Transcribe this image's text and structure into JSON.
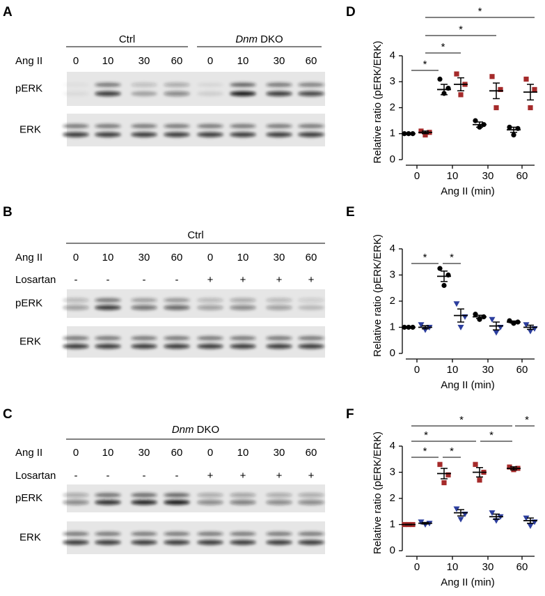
{
  "blots": [
    {
      "panel": "A",
      "groups": [
        [
          "Ctrl"
        ],
        [
          "Dnm",
          "DKO"
        ]
      ],
      "rows": [
        {
          "label": "Ang II",
          "cells": [
            "0",
            "10",
            "30",
            "60",
            "0",
            "10",
            "30",
            "60"
          ]
        }
      ],
      "bands": [
        "pERK",
        "ERK"
      ]
    },
    {
      "panel": "B",
      "groups": [
        [
          "Ctrl"
        ]
      ],
      "rows": [
        {
          "label": "Ang II",
          "cells": [
            "0",
            "10",
            "30",
            "60",
            "0",
            "10",
            "30",
            "60"
          ]
        },
        {
          "label": "Losartan",
          "cells": [
            "-",
            "-",
            "-",
            "-",
            "+",
            "+",
            "+",
            "+"
          ]
        }
      ],
      "bands": [
        "pERK",
        "ERK"
      ]
    },
    {
      "panel": "C",
      "groups": [
        [
          "Dnm",
          "DKO"
        ]
      ],
      "rows": [
        {
          "label": "Ang II",
          "cells": [
            "0",
            "10",
            "30",
            "60",
            "0",
            "10",
            "30",
            "60"
          ]
        },
        {
          "label": "Losartan",
          "cells": [
            "-",
            "-",
            "-",
            "-",
            "+",
            "+",
            "+",
            "+"
          ]
        }
      ],
      "bands": [
        "pERK",
        "ERK"
      ]
    }
  ],
  "chart_data": [
    {
      "type": "dotplot",
      "panel": "D",
      "ylabel": "Relative ratio (pERK/ERK)",
      "xlabel": "Ang II (min)",
      "categories": [
        "0",
        "10",
        "30",
        "60"
      ],
      "ylim": [
        0,
        4
      ],
      "yticks": [
        0,
        1,
        2,
        3,
        4
      ],
      "series": [
        {
          "color": "#000000",
          "marker": "circle",
          "values": [
            1,
            2.7,
            1.35,
            1.15
          ],
          "errors": [
            0.01,
            0.2,
            0.1,
            0.1
          ],
          "points": [
            [
              1,
              1,
              1
            ],
            [
              3.1,
              2.75,
              2.55
            ],
            [
              1.5,
              1.35,
              1.25
            ],
            [
              1.25,
              1.2,
              0.95
            ]
          ]
        },
        {
          "color": "#a52a2a",
          "marker": "square",
          "values": [
            1.05,
            2.9,
            2.65,
            2.6
          ],
          "errors": [
            0.05,
            0.25,
            0.3,
            0.3
          ],
          "points": [
            [
              1.1,
              1.05,
              0.95
            ],
            [
              3.3,
              2.9,
              2.5
            ],
            [
              3.2,
              2.7,
              2.0
            ],
            [
              3.1,
              2.7,
              2.0
            ]
          ]
        }
      ],
      "significance": [
        "*",
        "*",
        "*",
        "*"
      ]
    },
    {
      "type": "dotplot",
      "panel": "E",
      "ylabel": "Relative ratio (pERK/ERK)",
      "xlabel": "Ang II (min)",
      "categories": [
        "0",
        "10",
        "30",
        "60"
      ],
      "ylim": [
        0,
        4
      ],
      "yticks": [
        0,
        1,
        2,
        3,
        4
      ],
      "series": [
        {
          "color": "#000000",
          "marker": "circle",
          "values": [
            1,
            2.95,
            1.4,
            1.2
          ],
          "errors": [
            0.01,
            0.2,
            0.06,
            0.04
          ],
          "points": [
            [
              1,
              1,
              1
            ],
            [
              3.25,
              3.0,
              2.6
            ],
            [
              1.5,
              1.4,
              1.3
            ],
            [
              1.25,
              1.2,
              1.15
            ]
          ]
        },
        {
          "color": "#2c3e9e",
          "marker": "triangle",
          "values": [
            1,
            1.45,
            1.05,
            1
          ],
          "errors": [
            0.06,
            0.25,
            0.15,
            0.08
          ],
          "points": [
            [
              1.1,
              1.0,
              0.9
            ],
            [
              1.9,
              1.4,
              1.0
            ],
            [
              1.3,
              1.0,
              0.8
            ],
            [
              1.1,
              0.95,
              0.85
            ]
          ]
        }
      ],
      "significance": [
        "*",
        "*"
      ]
    },
    {
      "type": "dotplot",
      "panel": "F",
      "ylabel": "Relative ratio (pERK/ERK)",
      "xlabel": "Ang II (min)",
      "categories": [
        "0",
        "10",
        "30",
        "60"
      ],
      "ylim": [
        0,
        4
      ],
      "yticks": [
        0,
        1,
        2,
        3,
        4
      ],
      "series": [
        {
          "color": "#a52a2a",
          "marker": "square",
          "values": [
            1,
            2.95,
            3.0,
            3.15
          ],
          "errors": [
            0.01,
            0.2,
            0.18,
            0.06
          ],
          "points": [
            [
              1,
              1,
              1
            ],
            [
              3.3,
              2.9,
              2.6
            ],
            [
              3.3,
              3.0,
              2.7
            ],
            [
              3.2,
              3.15,
              3.1
            ]
          ]
        },
        {
          "color": "#2c3e9e",
          "marker": "triangle",
          "values": [
            1.05,
            1.45,
            1.3,
            1.15
          ],
          "errors": [
            0.03,
            0.12,
            0.1,
            0.1
          ],
          "points": [
            [
              1.1,
              1.05,
              1.0
            ],
            [
              1.6,
              1.4,
              1.2
            ],
            [
              1.45,
              1.3,
              1.15
            ],
            [
              1.25,
              1.1,
              0.95
            ]
          ]
        }
      ],
      "significance": [
        "*",
        "*",
        "*",
        "*",
        "*",
        "*"
      ]
    }
  ]
}
